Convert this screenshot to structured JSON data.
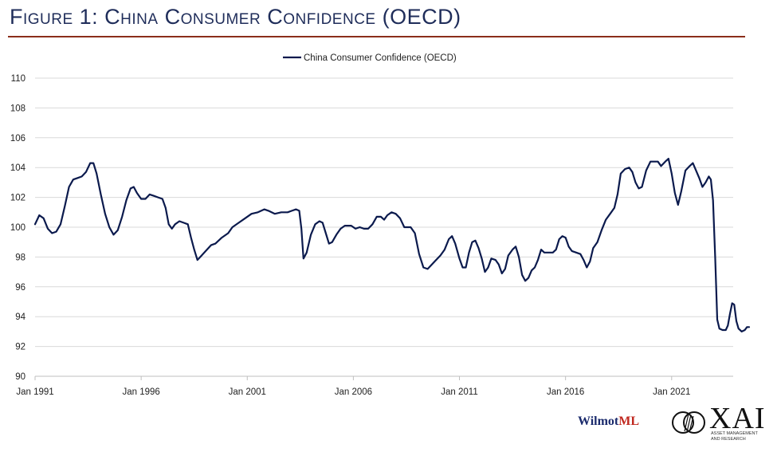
{
  "figure_title": "Figure 1: China Consumer Confidence (OECD)",
  "colors": {
    "line": "#0b1a4d",
    "title": "#1f2d5a",
    "rule": "#8b2d1a",
    "grid": "#d9d9d9"
  },
  "chart_data": {
    "type": "line",
    "title": "",
    "xlabel": "",
    "ylabel": "",
    "ylim": [
      90,
      110
    ],
    "yticks": [
      90,
      92,
      94,
      96,
      98,
      100,
      102,
      104,
      106,
      108,
      110
    ],
    "xlim": [
      1991.0,
      2023.9
    ],
    "xticks": [
      {
        "x": 1991,
        "label": "Jan 1991"
      },
      {
        "x": 1996,
        "label": "Jan 1996"
      },
      {
        "x": 2001,
        "label": "Jan 2001"
      },
      {
        "x": 2006,
        "label": "Jan 2006"
      },
      {
        "x": 2011,
        "label": "Jan 2011"
      },
      {
        "x": 2016,
        "label": "Jan 2016"
      },
      {
        "x": 2021,
        "label": "Jan 2021"
      }
    ],
    "grid": true,
    "legend": {
      "position": "top-center",
      "entries": [
        "China Consumer Confidence (OECD)"
      ]
    },
    "series": [
      {
        "name": "China Consumer Confidence (OECD)",
        "points": [
          [
            1991.0,
            100.2
          ],
          [
            1991.2,
            100.8
          ],
          [
            1991.4,
            100.6
          ],
          [
            1991.6,
            99.9
          ],
          [
            1991.8,
            99.6
          ],
          [
            1992.0,
            99.7
          ],
          [
            1992.2,
            100.2
          ],
          [
            1992.4,
            101.4
          ],
          [
            1992.6,
            102.7
          ],
          [
            1992.8,
            103.2
          ],
          [
            1993.0,
            103.3
          ],
          [
            1993.2,
            103.4
          ],
          [
            1993.4,
            103.7
          ],
          [
            1993.6,
            104.3
          ],
          [
            1993.75,
            104.3
          ],
          [
            1993.9,
            103.6
          ],
          [
            1994.1,
            102.2
          ],
          [
            1994.3,
            100.9
          ],
          [
            1994.5,
            100.0
          ],
          [
            1994.7,
            99.5
          ],
          [
            1994.9,
            99.8
          ],
          [
            1995.1,
            100.7
          ],
          [
            1995.3,
            101.8
          ],
          [
            1995.5,
            102.6
          ],
          [
            1995.65,
            102.7
          ],
          [
            1995.8,
            102.3
          ],
          [
            1996.0,
            101.9
          ],
          [
            1996.2,
            101.9
          ],
          [
            1996.4,
            102.2
          ],
          [
            1996.6,
            102.1
          ],
          [
            1996.8,
            102.0
          ],
          [
            1997.0,
            101.9
          ],
          [
            1997.15,
            101.3
          ],
          [
            1997.3,
            100.2
          ],
          [
            1997.45,
            99.9
          ],
          [
            1997.6,
            100.2
          ],
          [
            1997.8,
            100.4
          ],
          [
            1998.0,
            100.3
          ],
          [
            1998.2,
            100.2
          ],
          [
            1998.35,
            99.3
          ],
          [
            1998.5,
            98.5
          ],
          [
            1998.65,
            97.8
          ],
          [
            1998.85,
            98.1
          ],
          [
            1999.1,
            98.5
          ],
          [
            1999.3,
            98.8
          ],
          [
            1999.5,
            98.9
          ],
          [
            1999.8,
            99.3
          ],
          [
            2000.1,
            99.6
          ],
          [
            2000.3,
            100.0
          ],
          [
            2000.6,
            100.3
          ],
          [
            2000.9,
            100.6
          ],
          [
            2001.2,
            100.9
          ],
          [
            2001.5,
            101.0
          ],
          [
            2001.8,
            101.2
          ],
          [
            2002.0,
            101.1
          ],
          [
            2002.3,
            100.9
          ],
          [
            2002.6,
            101.0
          ],
          [
            2002.9,
            101.0
          ],
          [
            2003.1,
            101.1
          ],
          [
            2003.3,
            101.2
          ],
          [
            2003.45,
            101.1
          ],
          [
            2003.55,
            99.9
          ],
          [
            2003.65,
            97.9
          ],
          [
            2003.8,
            98.3
          ],
          [
            2004.0,
            99.5
          ],
          [
            2004.2,
            100.2
          ],
          [
            2004.4,
            100.4
          ],
          [
            2004.55,
            100.3
          ],
          [
            2004.7,
            99.6
          ],
          [
            2004.85,
            98.9
          ],
          [
            2005.0,
            99.0
          ],
          [
            2005.2,
            99.5
          ],
          [
            2005.4,
            99.9
          ],
          [
            2005.6,
            100.1
          ],
          [
            2005.9,
            100.1
          ],
          [
            2006.1,
            99.9
          ],
          [
            2006.3,
            100.0
          ],
          [
            2006.5,
            99.9
          ],
          [
            2006.7,
            99.9
          ],
          [
            2006.9,
            100.2
          ],
          [
            2007.1,
            100.7
          ],
          [
            2007.3,
            100.7
          ],
          [
            2007.45,
            100.5
          ],
          [
            2007.6,
            100.8
          ],
          [
            2007.8,
            101.0
          ],
          [
            2008.0,
            100.9
          ],
          [
            2008.2,
            100.6
          ],
          [
            2008.4,
            100.0
          ],
          [
            2008.7,
            100.0
          ],
          [
            2008.9,
            99.6
          ],
          [
            2009.1,
            98.2
          ],
          [
            2009.3,
            97.3
          ],
          [
            2009.5,
            97.2
          ],
          [
            2009.7,
            97.5
          ],
          [
            2009.9,
            97.8
          ],
          [
            2010.1,
            98.1
          ],
          [
            2010.3,
            98.5
          ],
          [
            2010.5,
            99.2
          ],
          [
            2010.65,
            99.4
          ],
          [
            2010.8,
            98.9
          ],
          [
            2011.0,
            97.9
          ],
          [
            2011.15,
            97.3
          ],
          [
            2011.3,
            97.3
          ],
          [
            2011.45,
            98.3
          ],
          [
            2011.6,
            99.0
          ],
          [
            2011.75,
            99.1
          ],
          [
            2011.9,
            98.6
          ],
          [
            2012.05,
            97.9
          ],
          [
            2012.2,
            97.0
          ],
          [
            2012.35,
            97.3
          ],
          [
            2012.5,
            97.9
          ],
          [
            2012.7,
            97.8
          ],
          [
            2012.85,
            97.5
          ],
          [
            2013.0,
            96.9
          ],
          [
            2013.15,
            97.2
          ],
          [
            2013.3,
            98.1
          ],
          [
            2013.5,
            98.5
          ],
          [
            2013.65,
            98.7
          ],
          [
            2013.8,
            98.0
          ],
          [
            2013.95,
            96.8
          ],
          [
            2014.1,
            96.4
          ],
          [
            2014.25,
            96.6
          ],
          [
            2014.4,
            97.1
          ],
          [
            2014.55,
            97.3
          ],
          [
            2014.7,
            97.8
          ],
          [
            2014.85,
            98.5
          ],
          [
            2015.0,
            98.3
          ],
          [
            2015.2,
            98.3
          ],
          [
            2015.4,
            98.3
          ],
          [
            2015.55,
            98.5
          ],
          [
            2015.7,
            99.2
          ],
          [
            2015.85,
            99.4
          ],
          [
            2016.0,
            99.3
          ],
          [
            2016.15,
            98.7
          ],
          [
            2016.3,
            98.4
          ],
          [
            2016.5,
            98.3
          ],
          [
            2016.7,
            98.2
          ],
          [
            2016.85,
            97.8
          ],
          [
            2017.0,
            97.3
          ],
          [
            2017.15,
            97.7
          ],
          [
            2017.3,
            98.6
          ],
          [
            2017.5,
            99.0
          ],
          [
            2017.7,
            99.8
          ],
          [
            2017.9,
            100.5
          ],
          [
            2018.1,
            100.9
          ],
          [
            2018.3,
            101.3
          ],
          [
            2018.45,
            102.2
          ],
          [
            2018.6,
            103.6
          ],
          [
            2018.8,
            103.9
          ],
          [
            2019.0,
            104.0
          ],
          [
            2019.15,
            103.7
          ],
          [
            2019.3,
            103.0
          ],
          [
            2019.45,
            102.6
          ],
          [
            2019.6,
            102.7
          ],
          [
            2019.8,
            103.8
          ],
          [
            2020.0,
            104.4
          ],
          [
            2020.2,
            104.4
          ],
          [
            2020.35,
            104.4
          ],
          [
            2020.5,
            104.1
          ],
          [
            2020.7,
            104.4
          ],
          [
            2020.85,
            104.6
          ],
          [
            2021.0,
            103.6
          ],
          [
            2021.15,
            102.3
          ],
          [
            2021.3,
            101.5
          ],
          [
            2021.45,
            102.4
          ],
          [
            2021.65,
            103.8
          ],
          [
            2021.85,
            104.1
          ],
          [
            2022.0,
            104.3
          ],
          [
            2022.15,
            103.8
          ],
          [
            2022.3,
            103.3
          ],
          [
            2022.45,
            102.7
          ],
          [
            2022.6,
            103.0
          ],
          [
            2022.75,
            103.4
          ],
          [
            2022.85,
            103.2
          ],
          [
            2022.95,
            101.8
          ],
          [
            2023.05,
            98.0
          ],
          [
            2023.15,
            93.8
          ],
          [
            2023.25,
            93.2
          ],
          [
            2023.4,
            93.1
          ],
          [
            2023.55,
            93.1
          ],
          [
            2023.65,
            93.4
          ],
          [
            2023.75,
            94.2
          ],
          [
            2023.85,
            94.9
          ],
          [
            2023.95,
            94.8
          ],
          [
            2024.05,
            93.7
          ],
          [
            2024.15,
            93.2
          ],
          [
            2024.3,
            93.0
          ],
          [
            2024.45,
            93.1
          ],
          [
            2024.55,
            93.3
          ],
          [
            2024.65,
            93.3
          ]
        ]
      }
    ]
  },
  "logos": {
    "wilmot_main": "Wilmot",
    "wilmot_accent": "ML",
    "xai": "XAI",
    "xai_sub": "ASSET MANAGEMENT AND RESEARCH"
  }
}
